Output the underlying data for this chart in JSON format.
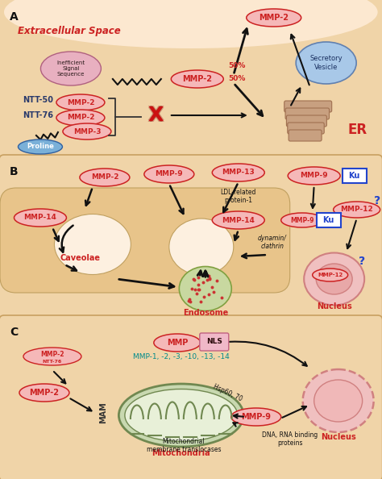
{
  "colors": {
    "red_ellipse_fill": "#f5b8b8",
    "red_ellipse_edge": "#cc2222",
    "red_text": "#cc2222",
    "dark_red": "#8b0000",
    "navy_text": "#2a3a6b",
    "teal_text": "#008b8b",
    "cell_bg": "#f0d4a8",
    "extracell_bg": "#fce8d0",
    "panel_border": "#c8a060",
    "vesicle_blue": "#a8c8e8",
    "vesicle_edge": "#6080b0",
    "signal_fill": "#e8b0c0",
    "signal_edge": "#b06080",
    "proline_fill": "#7ab0d8",
    "proline_edge": "#3060a0",
    "er_color": "#c8a080",
    "er_edge": "#a07050",
    "endo_fill": "#c8d8a0",
    "endo_edge": "#80a040",
    "cav_fill": "#e8c898",
    "nucleus_outer": "#f0c0c0",
    "nucleus_inner": "#e8a8a8",
    "nucleus_edge": "#d08080",
    "mito_outer": "#c8d8b0",
    "mito_edge": "#708850",
    "mito_inner": "#e8f0d8",
    "ku_border": "#2244cc",
    "ku_fill": "white",
    "arrow_color": "#111111",
    "cross_red": "#cc1111",
    "nls_fill": "#f0b8c8",
    "nls_edge": "#c06080",
    "black": "#111111",
    "white": "#ffffff"
  },
  "panel_A": {
    "label": "A",
    "extracell_text": "Extracellular Space",
    "mmp2_top": "MMP-2",
    "mmp2_mid": "MMP-2",
    "signal_text": "Inefficient\nSignal\nSequence",
    "pct50_up": "50%",
    "pct50_dn": "50%",
    "ntt50": "NTT-50",
    "ntt76": "NTT-76",
    "mmp2_ntt50": "MMP-2",
    "mmp2_ntt76": "MMP-2",
    "mmp3": "MMP-3",
    "proline": "Proline",
    "secretory": "Secretory\nVesicle",
    "er_label": "ER"
  },
  "panel_B": {
    "label": "B",
    "mmp2": "MMP-2",
    "mmp9": "MMP-9",
    "mmp13": "MMP-13",
    "mmp14_left": "MMP-14",
    "mmp14_right": "MMP-14",
    "caveolae": "Caveolae",
    "endosome": "Endosome",
    "ldl": "LDL-related\nprotein-1",
    "dynamin": "dynamin/\nclathrin",
    "mmp9_right": "MMP-9",
    "ku_box": "Ku",
    "mmp9_ku": "MMP-9",
    "ku_small": "Ku",
    "mmp12": "MMP-12",
    "mmp12_small": "MMP-12",
    "nucleus_right": "Nucleus",
    "question1": "?",
    "question2": "?"
  },
  "panel_C": {
    "label": "C",
    "mmp_nls": "MMP",
    "nls": "NLS",
    "mmp_list": "MMP-1, -2, -3, -10, -13, -14",
    "mmp2ntt76_line1": "MMP-2",
    "mmp2ntt76_line2": "NTT-76",
    "mmp2": "MMP-2",
    "mam": "MAM",
    "mitochondria": "Mitochondria",
    "mmp9": "MMP-9",
    "hsp": "Hsp60, 70",
    "mit_trans": "Mitochondrial\nmembrane translocases",
    "dna_rna": "DNA, RNA binding\nproteins",
    "nucleus": "Nucleus"
  }
}
